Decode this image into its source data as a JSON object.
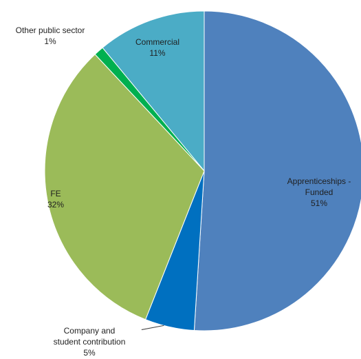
{
  "chart_data": {
    "type": "pie",
    "title": "",
    "legend": "none",
    "slices": [
      {
        "name_lines": [
          "Apprenticeships -",
          "Funded"
        ],
        "value_label": "51%",
        "value": 51,
        "color": "#4f81bd"
      },
      {
        "name_lines": [
          "Company and",
          "student contribution"
        ],
        "value_label": "5%",
        "value": 5,
        "color": "#0070c0"
      },
      {
        "name_lines": [
          "FE"
        ],
        "value_label": "32%",
        "value": 32,
        "color": "#9bbb59"
      },
      {
        "name_lines": [
          "Other public sector"
        ],
        "value_label": "1%",
        "value": 1,
        "color": "#00b050"
      },
      {
        "name_lines": [
          "Commercial"
        ],
        "value_label": "11%",
        "value": 11,
        "color": "#4bacc6"
      }
    ]
  }
}
